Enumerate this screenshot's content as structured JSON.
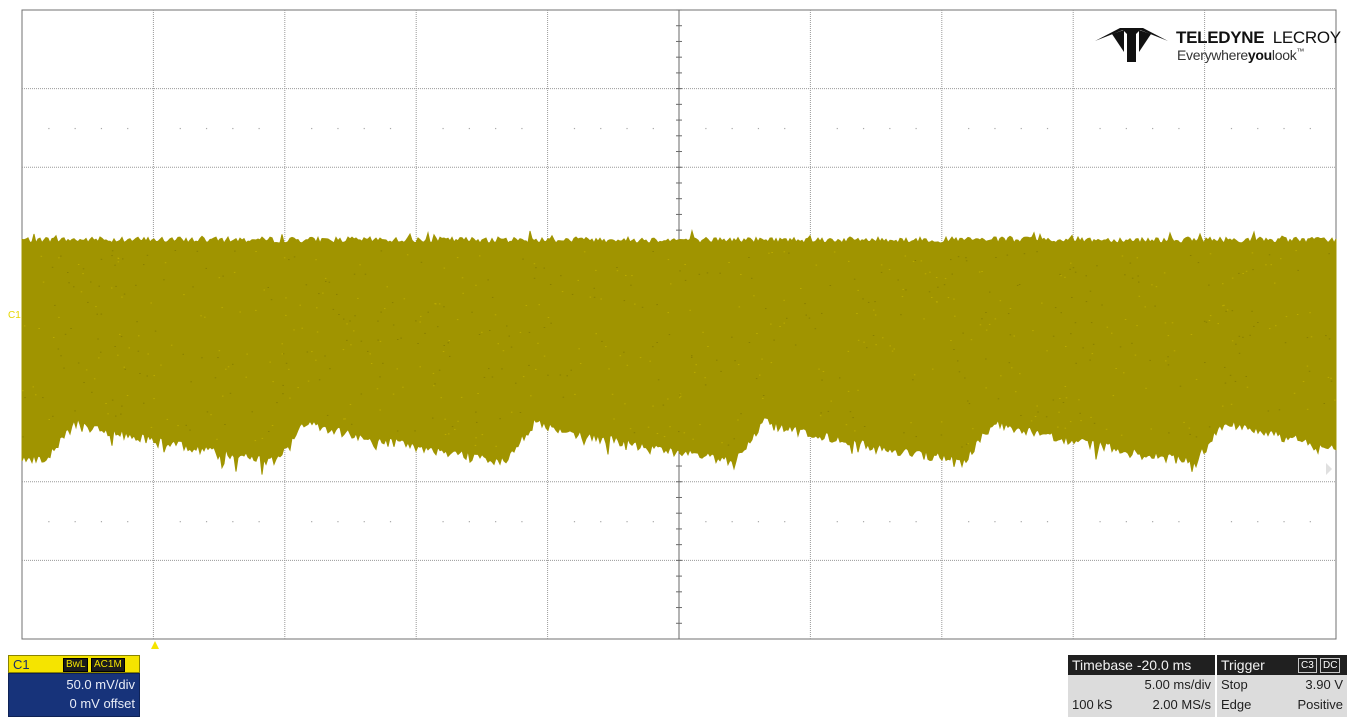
{
  "brand": {
    "name_bold": "TELEDYNE",
    "name_light": "LECROY",
    "tagline_pre": "Everywhere",
    "tagline_bold": "you",
    "tagline_post": "look",
    "tagline_mark": "™"
  },
  "grid": {
    "divisions_x": 10,
    "divisions_y": 8,
    "subdivisions": 5
  },
  "trace": {
    "channel": "C1",
    "color": "#a09400",
    "label_color": "#e6d700"
  },
  "channel_panel": {
    "name": "C1",
    "tags": [
      "BwL",
      "AC1M"
    ],
    "vdiv": "50.0 mV/div",
    "offset": "0 mV offset"
  },
  "timebase": {
    "title": "Timebase",
    "delay": "-20.0 ms",
    "tdiv": "5.00 ms/div",
    "samples": "100 kS",
    "rate": "2.00 MS/s"
  },
  "trigger": {
    "title": "Trigger",
    "source": "C3",
    "coupling": "DC",
    "mode": "Stop",
    "level": "3.90 V",
    "type": "Edge",
    "slope": "Positive"
  },
  "colors": {
    "accent_yellow": "#f5e400",
    "panel_blue": "#17337a",
    "panel_dark": "#202020",
    "panel_gray": "#dcdcdc",
    "grid_line": "#9a9a9a"
  }
}
